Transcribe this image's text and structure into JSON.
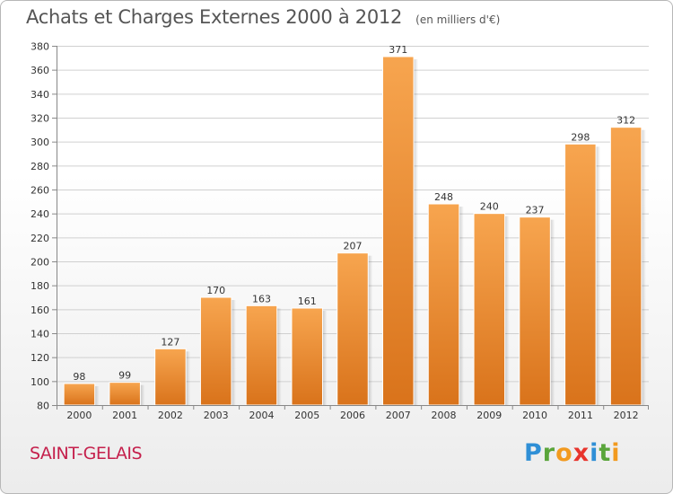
{
  "header": {
    "title": "Achats et Charges Externes 2000 à 2012",
    "subtitle": "(en milliers d'€)"
  },
  "commune": "SAINT-GELAIS",
  "logo": {
    "letters": [
      "P",
      "r",
      "o",
      "x",
      "i",
      "t",
      "i"
    ],
    "colors": [
      "#2f8fd6",
      "#5aa53b",
      "#f29a1f",
      "#e8342c",
      "#2f8fd6",
      "#5aa53b",
      "#f29a1f"
    ]
  },
  "colors": {
    "bar_top": "#f7a54f",
    "bar_bottom": "#d9731b",
    "grid": "#d0d0d0",
    "axis_text": "#333333",
    "title": "#555555",
    "commune": "#c5204c"
  },
  "chart_data": {
    "type": "bar",
    "title": "Achats et Charges Externes 2000 à 2012",
    "subtitle": "(en milliers d'€)",
    "xlabel": "",
    "ylabel": "",
    "categories": [
      "2000",
      "2001",
      "2002",
      "2003",
      "2004",
      "2005",
      "2006",
      "2007",
      "2008",
      "2009",
      "2010",
      "2011",
      "2012"
    ],
    "values": [
      98,
      99,
      127,
      170,
      163,
      161,
      207,
      371,
      248,
      240,
      237,
      298,
      312
    ],
    "ylim": [
      80,
      380
    ],
    "yticks": [
      80,
      100,
      120,
      140,
      160,
      180,
      200,
      220,
      240,
      260,
      280,
      300,
      320,
      340,
      360,
      380
    ],
    "grid": true,
    "legend": "none"
  }
}
